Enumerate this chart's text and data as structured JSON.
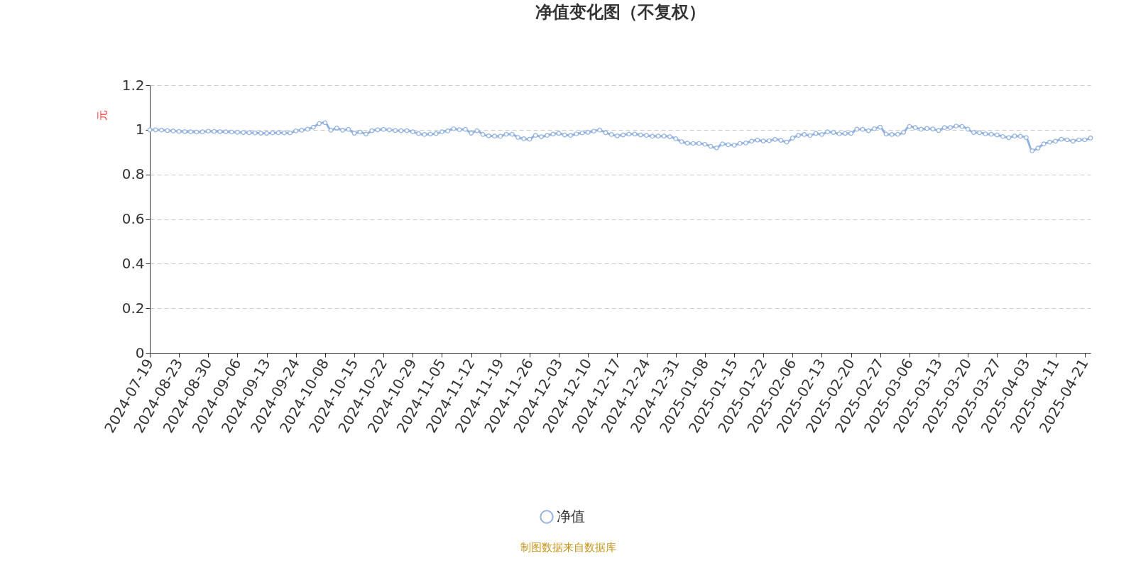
{
  "chart_data": {
    "type": "line",
    "title": "净值变化图（不复权）",
    "ylabel": "元",
    "categories": [
      "2024-07-19",
      null,
      null,
      null,
      null,
      "2024-08-23",
      null,
      null,
      null,
      null,
      "2024-08-30",
      null,
      null,
      null,
      null,
      "2024-09-06",
      null,
      null,
      null,
      null,
      "2024-09-13",
      null,
      null,
      null,
      null,
      "2024-09-24",
      null,
      null,
      null,
      null,
      "2024-10-08",
      null,
      null,
      null,
      null,
      "2024-10-15",
      null,
      null,
      null,
      null,
      "2024-10-22",
      null,
      null,
      null,
      null,
      "2024-10-29",
      null,
      null,
      null,
      null,
      "2024-11-05",
      null,
      null,
      null,
      null,
      "2024-11-12",
      null,
      null,
      null,
      null,
      "2024-11-19",
      null,
      null,
      null,
      null,
      "2024-11-26",
      null,
      null,
      null,
      null,
      "2024-12-03",
      null,
      null,
      null,
      null,
      "2024-12-10",
      null,
      null,
      null,
      null,
      "2024-12-17",
      null,
      null,
      null,
      null,
      "2024-12-24",
      null,
      null,
      null,
      null,
      "2024-12-31",
      null,
      null,
      null,
      null,
      "2025-01-08",
      null,
      null,
      null,
      null,
      "2025-01-15",
      null,
      null,
      null,
      null,
      "2025-01-22",
      null,
      null,
      null,
      null,
      "2025-02-06",
      null,
      null,
      null,
      null,
      "2025-02-13",
      null,
      null,
      null,
      null,
      "2025-02-20",
      null,
      null,
      null,
      null,
      "2025-02-27",
      null,
      null,
      null,
      null,
      "2025-03-06",
      null,
      null,
      null,
      null,
      "2025-03-13",
      null,
      null,
      null,
      null,
      "2025-03-20",
      null,
      null,
      null,
      null,
      "2025-03-27",
      null,
      null,
      null,
      null,
      "2025-04-03",
      null,
      null,
      null,
      null,
      "2025-04-11",
      null,
      null,
      null,
      null,
      "2025-04-21",
      null
    ],
    "series": [
      {
        "name": "净值",
        "color": "#91b1e0",
        "values": [
          1.0,
          1.0,
          0.999,
          0.997,
          0.995,
          0.993,
          0.992,
          0.991,
          0.99,
          0.991,
          0.994,
          0.993,
          0.992,
          0.991,
          0.99,
          0.989,
          0.988,
          0.987,
          0.986,
          0.985,
          0.984,
          0.986,
          0.987,
          0.986,
          0.986,
          0.995,
          0.998,
          1.003,
          1.012,
          1.028,
          1.032,
          0.998,
          1.008,
          0.998,
          1.002,
          0.985,
          0.99,
          0.981,
          0.996,
          1.0,
          1.002,
          1.0,
          0.997,
          0.996,
          0.996,
          0.991,
          0.983,
          0.979,
          0.981,
          0.983,
          0.991,
          0.995,
          1.005,
          1.001,
          1.002,
          0.985,
          0.996,
          0.979,
          0.973,
          0.972,
          0.971,
          0.98,
          0.98,
          0.966,
          0.96,
          0.958,
          0.975,
          0.969,
          0.975,
          0.981,
          0.984,
          0.977,
          0.975,
          0.982,
          0.986,
          0.989,
          0.994,
          0.999,
          0.987,
          0.979,
          0.973,
          0.977,
          0.981,
          0.981,
          0.977,
          0.975,
          0.971,
          0.972,
          0.972,
          0.969,
          0.96,
          0.947,
          0.94,
          0.939,
          0.939,
          0.935,
          0.926,
          0.919,
          0.937,
          0.933,
          0.931,
          0.939,
          0.941,
          0.949,
          0.954,
          0.95,
          0.951,
          0.957,
          0.953,
          0.945,
          0.963,
          0.975,
          0.979,
          0.974,
          0.984,
          0.979,
          0.991,
          0.988,
          0.982,
          0.984,
          0.984,
          1.003,
          1.002,
          0.996,
          1.005,
          1.012,
          0.981,
          0.979,
          0.98,
          0.989,
          1.015,
          1.01,
          1.003,
          1.006,
          1.004,
          0.997,
          1.01,
          1.01,
          1.017,
          1.015,
          1.003,
          0.988,
          0.987,
          0.982,
          0.98,
          0.977,
          0.97,
          0.965,
          0.972,
          0.971,
          0.965,
          0.906,
          0.918,
          0.937,
          0.945,
          0.949,
          0.958,
          0.955,
          0.949,
          0.955,
          0.955,
          0.963
        ]
      }
    ],
    "ylim": [
      0,
      1.2
    ],
    "yticks": [
      0,
      0.2,
      0.4,
      0.6,
      0.8,
      1,
      1.2
    ],
    "grid": "y",
    "legend": "bottom",
    "marker": "circle",
    "line_style": "solid",
    "annotations": [
      "制图数据来自数据库"
    ]
  }
}
